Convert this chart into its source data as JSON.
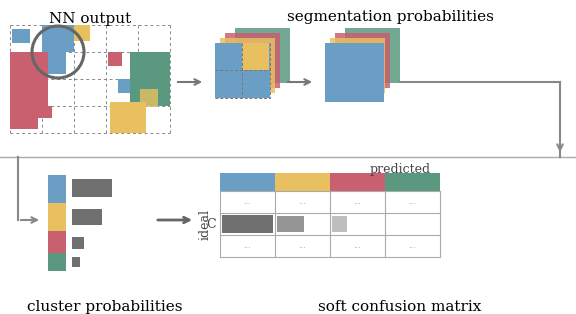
{
  "colors": {
    "blue": "#6A9EC5",
    "yellow": "#E8C060",
    "pink": "#C96070",
    "green": "#5A9980",
    "gray": "#707070",
    "dark_gray": "#555555",
    "light_gray": "#bbbbbb",
    "bg": "#ffffff",
    "grid": "#888888"
  },
  "texts": {
    "nn_output": "NN output",
    "seg_prob": "segmentation probabilities",
    "cluster_prob": "cluster probabilities",
    "soft_conf": "soft confusion matrix",
    "predicted": "predicted",
    "ideal": "ideal",
    "C": "C"
  },
  "figsize": [
    5.76,
    3.14
  ],
  "dpi": 100
}
